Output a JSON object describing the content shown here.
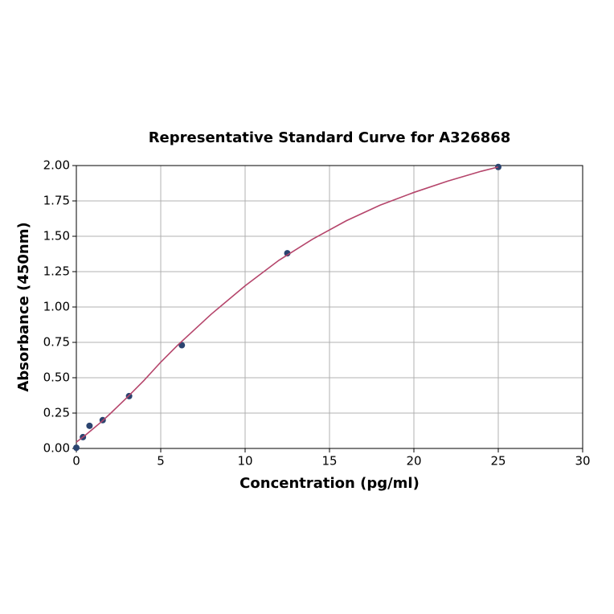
{
  "chart_data": {
    "type": "scatter",
    "title": "Representative Standard Curve for A326868",
    "x_label": "Concentration (pg/ml)",
    "y_label": "Absorbance (450nm)",
    "xlim": [
      0,
      30
    ],
    "ylim": [
      0,
      2
    ],
    "xticks": [
      0,
      5,
      10,
      15,
      20,
      25,
      30
    ],
    "yticks": [
      {
        "value": 0,
        "label": "0.00"
      },
      {
        "value": 0.25,
        "label": "0.25"
      },
      {
        "value": 0.5,
        "label": "0.50"
      },
      {
        "value": 0.75,
        "label": "0.75"
      },
      {
        "value": 1,
        "label": "1.00"
      },
      {
        "value": 1.25,
        "label": "1.25"
      },
      {
        "value": 1.5,
        "label": "1.50"
      },
      {
        "value": 1.75,
        "label": "1.75"
      },
      {
        "value": 2,
        "label": "2.00"
      }
    ],
    "grid": true,
    "series": [
      {
        "mode": "markers",
        "color": "#2b4470",
        "x": [
          0,
          0.39,
          0.78,
          1.56,
          3.125,
          6.25,
          12.5,
          25
        ],
        "values": [
          0.005,
          0.08,
          0.16,
          0.2,
          0.37,
          0.73,
          1.38,
          1.99
        ]
      },
      {
        "mode": "line",
        "color": "#b5456b",
        "x": [
          0,
          0.5,
          1,
          1.5,
          2,
          3,
          4,
          5,
          6,
          7,
          8,
          10,
          12,
          14,
          16,
          18,
          20,
          22,
          24,
          25
        ],
        "values": [
          0.045,
          0.09,
          0.14,
          0.19,
          0.245,
          0.36,
          0.48,
          0.61,
          0.73,
          0.84,
          0.95,
          1.15,
          1.33,
          1.48,
          1.61,
          1.72,
          1.81,
          1.89,
          1.96,
          1.99
        ]
      }
    ]
  }
}
